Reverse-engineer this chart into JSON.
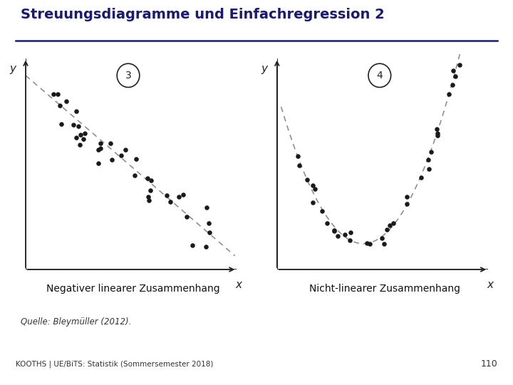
{
  "title": "Streuungsdiagramme und Einfachregression 2",
  "title_color": "#1a1a6e",
  "title_fontsize": 14,
  "label_left": "Negativer linearer Zusammenhang",
  "label_right": "Nicht-linearer Zusammenhang",
  "label_fontsize": 10,
  "source_text": "Quelle: Bleymüller (2012).",
  "footer_text": "KOOTHS | UE/BiTS: Statistik (Sommersemester 2018)",
  "footer_number": "110",
  "background_color": "#ffffff",
  "footer_bg_color": "#e0e0e0",
  "circle_number_left": "3",
  "circle_number_right": "4",
  "plot_bg": "#ffffff",
  "scatter_color": "#1a1a1a",
  "line_color": "#888888",
  "axis_color": "#222222"
}
